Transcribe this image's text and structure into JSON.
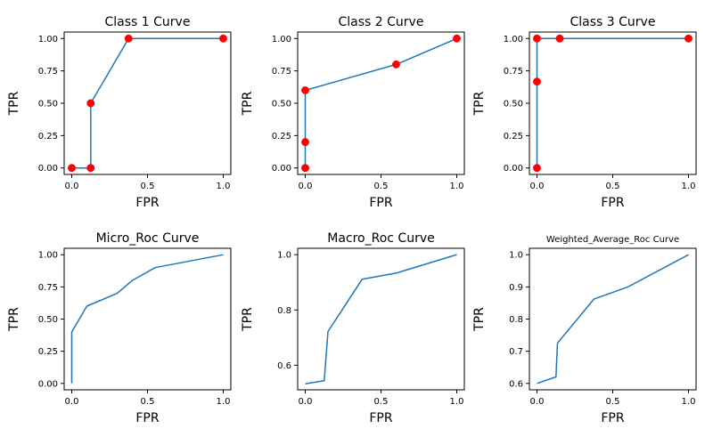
{
  "colors": {
    "line": "#1f77b4",
    "marker": "#ff0000",
    "axis": "#000000",
    "background": "#ffffff"
  },
  "chart_data": [
    {
      "type": "line",
      "title": "Class 1 Curve",
      "xlabel": "FPR",
      "ylabel": "TPR",
      "markers": true,
      "grid": false,
      "xlim": [
        -0.05,
        1.05
      ],
      "ylim": [
        -0.05,
        1.05
      ],
      "xticks": [
        0.0,
        0.5,
        1.0
      ],
      "xtick_labels": [
        "0.0",
        "0.5",
        "1.0"
      ],
      "yticks": [
        0.0,
        0.25,
        0.5,
        0.75,
        1.0
      ],
      "ytick_labels": [
        "0.00",
        "0.25",
        "0.50",
        "0.75",
        "1.00"
      ],
      "x": [
        0.0,
        0.125,
        0.125,
        0.375,
        1.0
      ],
      "y": [
        0.0,
        0.0,
        0.5,
        1.0,
        1.0
      ]
    },
    {
      "type": "line",
      "title": "Class 2 Curve",
      "xlabel": "FPR",
      "ylabel": "TPR",
      "markers": true,
      "grid": false,
      "xlim": [
        -0.05,
        1.05
      ],
      "ylim": [
        -0.05,
        1.05
      ],
      "xticks": [
        0.0,
        0.5,
        1.0
      ],
      "xtick_labels": [
        "0.0",
        "0.5",
        "1.0"
      ],
      "yticks": [
        0.0,
        0.25,
        0.5,
        0.75,
        1.0
      ],
      "ytick_labels": [
        "0.00",
        "0.25",
        "0.50",
        "0.75",
        "1.00"
      ],
      "x": [
        0.0,
        0.0,
        0.0,
        0.6,
        1.0
      ],
      "y": [
        0.0,
        0.2,
        0.6,
        0.8,
        1.0
      ]
    },
    {
      "type": "line",
      "title": "Class 3 Curve",
      "xlabel": "FPR",
      "ylabel": "TPR",
      "markers": true,
      "grid": false,
      "xlim": [
        -0.05,
        1.05
      ],
      "ylim": [
        -0.05,
        1.05
      ],
      "xticks": [
        0.0,
        0.5,
        1.0
      ],
      "xtick_labels": [
        "0.0",
        "0.5",
        "1.0"
      ],
      "yticks": [
        0.0,
        0.25,
        0.5,
        0.75,
        1.0
      ],
      "ytick_labels": [
        "0.00",
        "0.25",
        "0.50",
        "0.75",
        "1.00"
      ],
      "x": [
        0.0,
        0.0,
        0.0,
        0.15,
        1.0
      ],
      "y": [
        0.0,
        0.667,
        1.0,
        1.0,
        1.0
      ]
    },
    {
      "type": "line",
      "title": "Micro_Roc Curve",
      "xlabel": "FPR",
      "ylabel": "TPR",
      "markers": false,
      "grid": false,
      "xlim": [
        -0.05,
        1.05
      ],
      "ylim": [
        -0.05,
        1.05
      ],
      "xticks": [
        0.0,
        0.5,
        1.0
      ],
      "xtick_labels": [
        "0.0",
        "0.5",
        "1.0"
      ],
      "yticks": [
        0.0,
        0.25,
        0.5,
        0.75,
        1.0
      ],
      "ytick_labels": [
        "0.00",
        "0.25",
        "0.50",
        "0.75",
        "1.00"
      ],
      "x": [
        0.0,
        0.0,
        0.1,
        0.3,
        0.4,
        0.55,
        1.0
      ],
      "y": [
        0.0,
        0.4,
        0.6,
        0.7,
        0.8,
        0.9,
        1.0
      ]
    },
    {
      "type": "line",
      "title": "Macro_Roc Curve",
      "xlabel": "FPR",
      "ylabel": "TPR",
      "markers": false,
      "grid": false,
      "xlim": [
        -0.05,
        1.05
      ],
      "ylim": [
        0.511,
        1.023
      ],
      "xticks": [
        0.0,
        0.5,
        1.0
      ],
      "xtick_labels": [
        "0.0",
        "0.5",
        "1.0"
      ],
      "yticks": [
        0.6,
        0.8,
        1.0
      ],
      "ytick_labels": [
        "0.6",
        "0.8",
        "1.0"
      ],
      "x": [
        0.0,
        0.125,
        0.15,
        0.375,
        0.6,
        1.0
      ],
      "y": [
        0.533,
        0.544,
        0.722,
        0.911,
        0.933,
        1.0
      ]
    },
    {
      "type": "line",
      "title": "Weighted_Average_Roc Curve",
      "xlabel": "FPR",
      "ylabel": "TPR",
      "markers": false,
      "grid": false,
      "xlim": [
        -0.05,
        1.05
      ],
      "ylim": [
        0.58,
        1.02
      ],
      "xticks": [
        0.0,
        0.5,
        1.0
      ],
      "xtick_labels": [
        "0.0",
        "0.5",
        "1.0"
      ],
      "yticks": [
        0.6,
        0.7,
        0.8,
        0.9,
        1.0
      ],
      "ytick_labels": [
        "0.6",
        "0.7",
        "0.8",
        "0.9",
        "1.0"
      ],
      "x": [
        0.0,
        0.125,
        0.135,
        0.375,
        0.6,
        1.0
      ],
      "y": [
        0.6,
        0.62,
        0.725,
        0.862,
        0.9,
        1.0
      ]
    }
  ]
}
